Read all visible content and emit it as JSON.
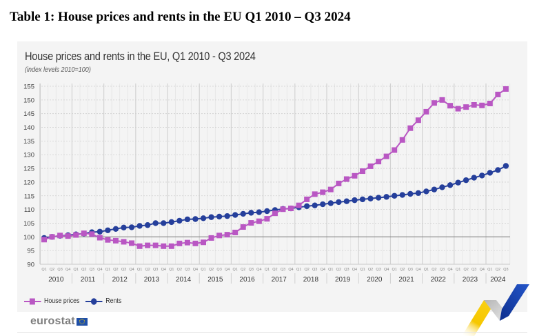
{
  "document": {
    "title": "Table 1: House prices and rents in the EU Q1 2010 – Q3 2024"
  },
  "branding": {
    "logo_text": "eurostat",
    "logo_flag_icon": "eu-flag-icon"
  },
  "colors": {
    "house_prices": "#b957c3",
    "rents": "#253f9b",
    "baseline": "#777777",
    "grid": "#d9d9d9",
    "panel_bg": "#f4f4f4"
  },
  "chart_data": {
    "type": "line",
    "title": "House prices and rents in the EU, Q1 2010 - Q3 2024",
    "subtitle": "(index levels 2010=100)",
    "xlabel": "",
    "ylabel": "",
    "ylim": [
      90,
      155
    ],
    "yticks": [
      90,
      95,
      100,
      105,
      110,
      115,
      120,
      125,
      130,
      135,
      140,
      145,
      150,
      155
    ],
    "reference_line": 100,
    "grid": true,
    "legend_position": "bottom-left",
    "years": [
      "2010",
      "2011",
      "2012",
      "2013",
      "2014",
      "2015",
      "2016",
      "2017",
      "2018",
      "2019",
      "2020",
      "2021",
      "2022",
      "2023",
      "2024"
    ],
    "quarter_labels": [
      "Q1",
      "Q2",
      "Q3",
      "Q4"
    ],
    "x": [
      "2010Q1",
      "2010Q2",
      "2010Q3",
      "2010Q4",
      "2011Q1",
      "2011Q2",
      "2011Q3",
      "2011Q4",
      "2012Q1",
      "2012Q2",
      "2012Q3",
      "2012Q4",
      "2013Q1",
      "2013Q2",
      "2013Q3",
      "2013Q4",
      "2014Q1",
      "2014Q2",
      "2014Q3",
      "2014Q4",
      "2015Q1",
      "2015Q2",
      "2015Q3",
      "2015Q4",
      "2016Q1",
      "2016Q2",
      "2016Q3",
      "2016Q4",
      "2017Q1",
      "2017Q2",
      "2017Q3",
      "2017Q4",
      "2018Q1",
      "2018Q2",
      "2018Q3",
      "2018Q4",
      "2019Q1",
      "2019Q2",
      "2019Q3",
      "2019Q4",
      "2020Q1",
      "2020Q2",
      "2020Q3",
      "2020Q4",
      "2021Q1",
      "2021Q2",
      "2021Q3",
      "2021Q4",
      "2022Q1",
      "2022Q2",
      "2022Q3",
      "2022Q4",
      "2023Q1",
      "2023Q2",
      "2023Q3",
      "2023Q4",
      "2024Q1",
      "2024Q2",
      "2024Q3"
    ],
    "series": [
      {
        "name": "House prices",
        "marker": "square",
        "values": [
          99.0,
          100.0,
          100.5,
          100.3,
          100.7,
          101.3,
          101.0,
          99.7,
          98.9,
          98.6,
          98.2,
          97.7,
          96.6,
          96.9,
          96.9,
          96.6,
          96.6,
          97.6,
          97.9,
          97.6,
          98.0,
          99.6,
          100.5,
          100.8,
          101.6,
          103.6,
          105.1,
          105.7,
          106.6,
          108.6,
          110.1,
          110.4,
          111.5,
          113.7,
          115.6,
          116.3,
          117.3,
          119.5,
          121.1,
          122.3,
          124.0,
          125.8,
          127.5,
          129.4,
          131.7,
          135.4,
          139.7,
          142.6,
          145.7,
          148.9,
          150.0,
          147.9,
          146.8,
          147.4,
          148.2,
          148.0,
          148.7,
          152.0,
          154.0
        ]
      },
      {
        "name": "Rents",
        "marker": "circle",
        "values": [
          99.6,
          100.0,
          100.4,
          100.6,
          100.9,
          101.2,
          101.7,
          101.9,
          102.4,
          102.9,
          103.4,
          103.5,
          104.0,
          104.3,
          105.0,
          105.0,
          105.4,
          105.9,
          106.4,
          106.5,
          106.8,
          107.2,
          107.4,
          107.6,
          108.0,
          108.4,
          108.8,
          109.0,
          109.4,
          109.8,
          110.2,
          110.4,
          110.8,
          111.2,
          111.5,
          111.9,
          112.3,
          112.7,
          113.0,
          113.4,
          113.7,
          114.0,
          114.3,
          114.6,
          115.0,
          115.3,
          115.7,
          116.0,
          116.6,
          117.3,
          118.1,
          118.9,
          119.8,
          120.7,
          121.6,
          122.4,
          123.4,
          124.4,
          125.9
        ]
      }
    ]
  }
}
